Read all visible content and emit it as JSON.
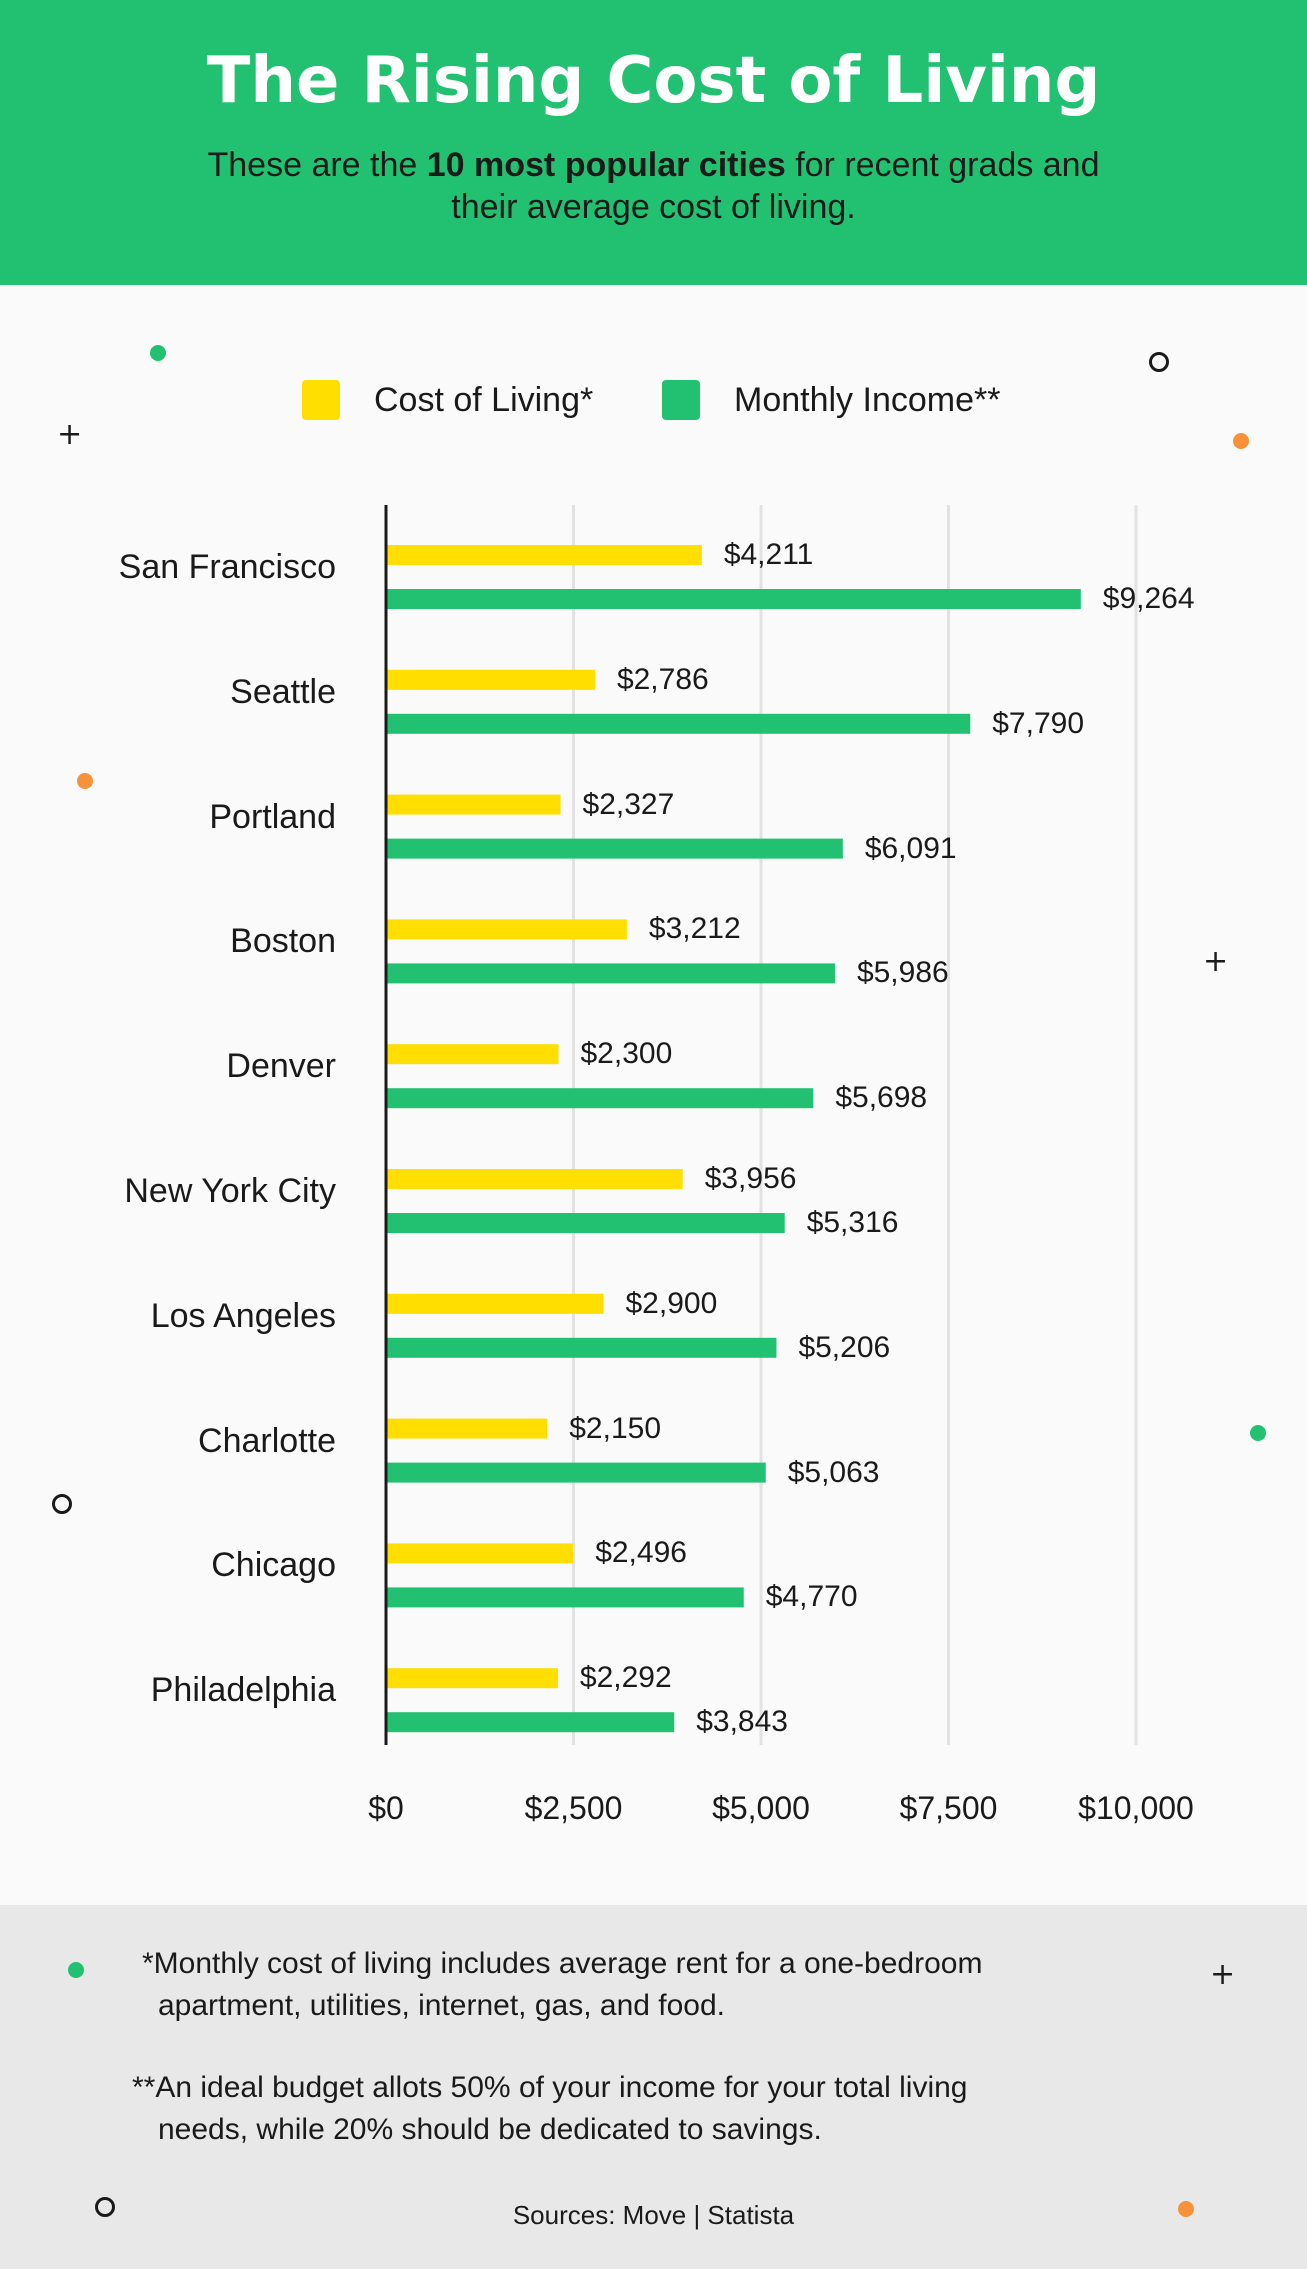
{
  "header": {
    "title": "The Rising Cost of Living",
    "subtitle_pre": "These are the ",
    "subtitle_bold": "10 most popular cities",
    "subtitle_post": " for recent grads and their average cost of living."
  },
  "colors": {
    "header_bg": "#22c172",
    "cost": "#ffde00",
    "income": "#22c172",
    "footer_bg": "#e8e8e8"
  },
  "chart_data": {
    "type": "bar",
    "orientation": "horizontal",
    "categories": [
      "San Francisco",
      "Seattle",
      "Portland",
      "Boston",
      "Denver",
      "New York City",
      "Los Angeles",
      "Charlotte",
      "Chicago",
      "Philadelphia"
    ],
    "series": [
      {
        "name": "Cost of Living*",
        "color": "#ffde00",
        "values": [
          4211,
          2786,
          2327,
          3212,
          2300,
          3956,
          2900,
          2150,
          2496,
          2292
        ],
        "labels": [
          "$4,211",
          "$2,786",
          "$2,327",
          "$3,212",
          "$2,300",
          "$3,956",
          "$2,900",
          "$2,150",
          "$2,496",
          "$2,292"
        ]
      },
      {
        "name": "Monthly Income**",
        "color": "#22c172",
        "values": [
          9264,
          7790,
          6091,
          5986,
          5698,
          5316,
          5206,
          5063,
          4770,
          3843
        ],
        "labels": [
          "$9,264",
          "$7,790",
          "$6,091",
          "$5,986",
          "$5,698",
          "$5,316",
          "$5,206",
          "$5,063",
          "$4,770",
          "$3,843"
        ]
      }
    ],
    "xlim": [
      0,
      10000
    ],
    "xticks": [
      0,
      2500,
      5000,
      7500,
      10000
    ],
    "xtick_labels": [
      "$0",
      "$2,500",
      "$5,000",
      "$7,500",
      "$10,000"
    ],
    "grid": true,
    "legend_position": "top-center"
  },
  "footer": {
    "note1_line1": "*Monthly cost of living includes average rent for a one-bedroom",
    "note1_line2": "apartment, utilities, internet, gas, and food.",
    "note2_line1": "**An ideal budget allots 50% of your income for your total living",
    "note2_line2": "needs, while 20% should be dedicated to savings.",
    "sources": "Sources: Move | Statista"
  }
}
